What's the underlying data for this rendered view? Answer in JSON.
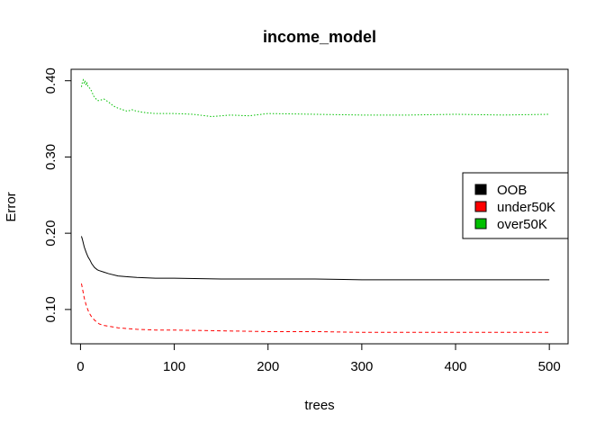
{
  "chart_data": {
    "type": "line",
    "title": "income_model",
    "xlabel": "trees",
    "ylabel": "Error",
    "xlim": [
      -10,
      520
    ],
    "ylim": [
      0.055,
      0.415
    ],
    "x_ticks": [
      0,
      100,
      200,
      300,
      400,
      500
    ],
    "x_tick_labels": [
      "0",
      "100",
      "200",
      "300",
      "400",
      "500"
    ],
    "y_ticks": [
      0.1,
      0.2,
      0.3,
      0.4
    ],
    "y_tick_labels": [
      "0.10",
      "0.20",
      "0.30",
      "0.40"
    ],
    "grid": false,
    "legend_position": "right",
    "series": [
      {
        "name": "OOB",
        "color": "#000000",
        "dash": "solid",
        "x": [
          1,
          2,
          4,
          6,
          8,
          10,
          12,
          15,
          18,
          20,
          25,
          30,
          40,
          50,
          60,
          80,
          100,
          150,
          200,
          250,
          300,
          350,
          400,
          450,
          500
        ],
        "values": [
          0.196,
          0.192,
          0.182,
          0.175,
          0.169,
          0.165,
          0.16,
          0.155,
          0.152,
          0.151,
          0.149,
          0.147,
          0.144,
          0.143,
          0.142,
          0.141,
          0.141,
          0.14,
          0.14,
          0.14,
          0.139,
          0.139,
          0.139,
          0.139,
          0.139
        ]
      },
      {
        "name": "under50K",
        "color": "#ff0000",
        "dash": "dashed",
        "x": [
          1,
          2,
          4,
          6,
          8,
          10,
          12,
          15,
          18,
          20,
          25,
          30,
          40,
          50,
          60,
          80,
          100,
          150,
          200,
          250,
          300,
          350,
          400,
          450,
          500
        ],
        "values": [
          0.134,
          0.128,
          0.115,
          0.106,
          0.099,
          0.094,
          0.09,
          0.086,
          0.083,
          0.081,
          0.079,
          0.078,
          0.076,
          0.075,
          0.074,
          0.073,
          0.073,
          0.072,
          0.071,
          0.071,
          0.07,
          0.07,
          0.07,
          0.07,
          0.07
        ]
      },
      {
        "name": "over50K",
        "color": "#00c000",
        "dash": "dotted",
        "x": [
          1,
          2,
          3,
          4,
          5,
          6,
          7,
          8,
          10,
          12,
          14,
          16,
          18,
          20,
          25,
          30,
          35,
          40,
          45,
          50,
          55,
          60,
          70,
          80,
          100,
          120,
          140,
          160,
          180,
          200,
          250,
          300,
          350,
          400,
          450,
          500
        ],
        "values": [
          0.392,
          0.398,
          0.401,
          0.396,
          0.399,
          0.394,
          0.397,
          0.392,
          0.39,
          0.386,
          0.38,
          0.377,
          0.374,
          0.374,
          0.376,
          0.372,
          0.367,
          0.364,
          0.362,
          0.36,
          0.362,
          0.36,
          0.358,
          0.357,
          0.357,
          0.356,
          0.353,
          0.355,
          0.354,
          0.357,
          0.356,
          0.355,
          0.355,
          0.356,
          0.355,
          0.356
        ]
      }
    ]
  }
}
